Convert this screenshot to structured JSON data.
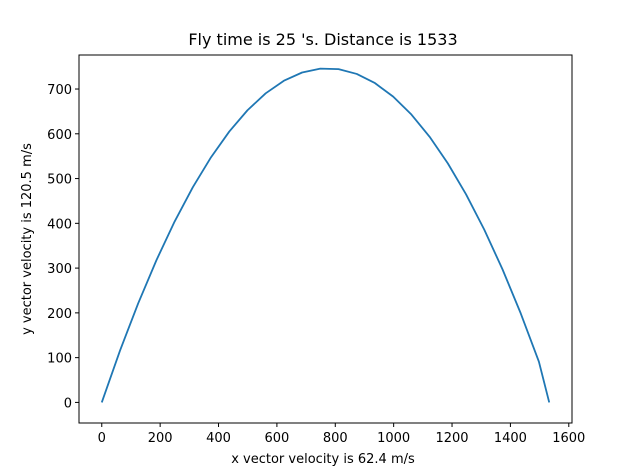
{
  "chart_data": {
    "type": "line",
    "title": "Fly time is 25 's. Distance is 1533",
    "xlabel": "x vector velocity is 62.4 m/s",
    "ylabel": "y vector velocity is 120.5 m/s",
    "xlim": [
      -78,
      1611
    ],
    "ylim": [
      -46,
      776
    ],
    "xticks": [
      0,
      200,
      400,
      600,
      800,
      1000,
      1200,
      1400,
      1600
    ],
    "yticks": [
      0,
      100,
      200,
      300,
      400,
      500,
      600,
      700
    ],
    "grid": false,
    "legend": "none",
    "series": [
      {
        "color": "#1f77b4",
        "x": [
          0,
          62.4,
          124.8,
          187.2,
          249.6,
          312.0,
          374.4,
          436.8,
          499.2,
          561.6,
          624.0,
          686.4,
          748.8,
          811.2,
          873.6,
          936.0,
          998.4,
          1060.8,
          1123.2,
          1185.6,
          1248.0,
          1310.4,
          1372.8,
          1435.2,
          1497.6,
          1533.0
        ],
        "y": [
          0,
          115.6,
          221.4,
          317.6,
          404.0,
          480.8,
          547.7,
          605.0,
          652.6,
          690.4,
          718.5,
          736.9,
          745.6,
          744.5,
          733.7,
          713.2,
          683.0,
          643.0,
          593.3,
          533.9,
          464.8,
          385.9,
          297.4,
          199.1,
          91.0,
          0
        ]
      }
    ]
  }
}
